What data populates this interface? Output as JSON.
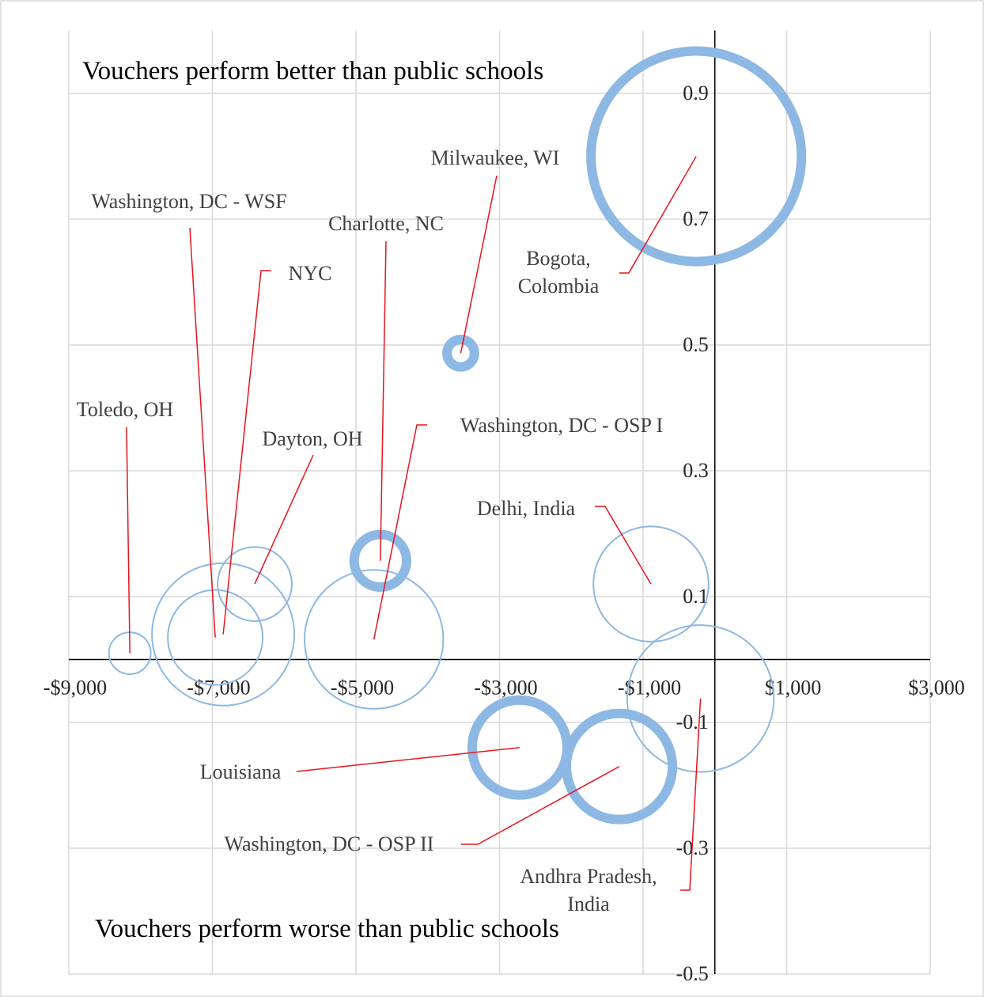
{
  "chart_data": {
    "type": "bubble",
    "annotations": [
      "Vouchers perform better than public schools",
      "Vouchers perform worse than public schools"
    ],
    "labels": [
      "Toledo, OH",
      "Washington, DC - WSF",
      "NYC",
      "Dayton, OH",
      "Charlotte, NC",
      "Washington, DC - OSP I",
      "Milwaukee, WI",
      "Delhi, India",
      "Bogota, Colombia",
      "Andhra Pradesh, India",
      "Louisiana",
      "Washington, DC - OSP II"
    ],
    "x": [
      -8150,
      -6960,
      -6850,
      -6410,
      -4660,
      -4750,
      -3540,
      -890,
      -260,
      -200,
      -2720,
      -1330
    ],
    "values": [
      0.01,
      0.035,
      0.04,
      0.12,
      0.157,
      0.032,
      0.487,
      0.12,
      0.8,
      -0.062,
      -0.14,
      -0.17
    ],
    "sizes": [
      7,
      36,
      81,
      22,
      11,
      77,
      3,
      53,
      177,
      86,
      36,
      45
    ],
    "stroke_widths": [
      2,
      2,
      2,
      2,
      12,
      2,
      12,
      2,
      12,
      2,
      12,
      12
    ],
    "color": "#8db8e3",
    "leader_color": "#e8141b",
    "xlim": [
      -9000,
      3000
    ],
    "xticks": [
      {
        "value": -9000,
        "label": "-$9,000"
      },
      {
        "value": -7000,
        "label": "-$7,000"
      },
      {
        "value": -5000,
        "label": "-$5,000"
      },
      {
        "value": -3000,
        "label": "-$3,000"
      },
      {
        "value": -1000,
        "label": "-$1,000"
      },
      {
        "value": 1000,
        "label": "$1,000"
      },
      {
        "value": 3000,
        "label": "$3,000"
      }
    ],
    "ylim": [
      -0.5,
      1.0
    ],
    "yticks": [
      -0.5,
      -0.3,
      -0.1,
      0.1,
      0.3,
      0.5,
      0.7,
      0.9
    ],
    "grid": true
  }
}
